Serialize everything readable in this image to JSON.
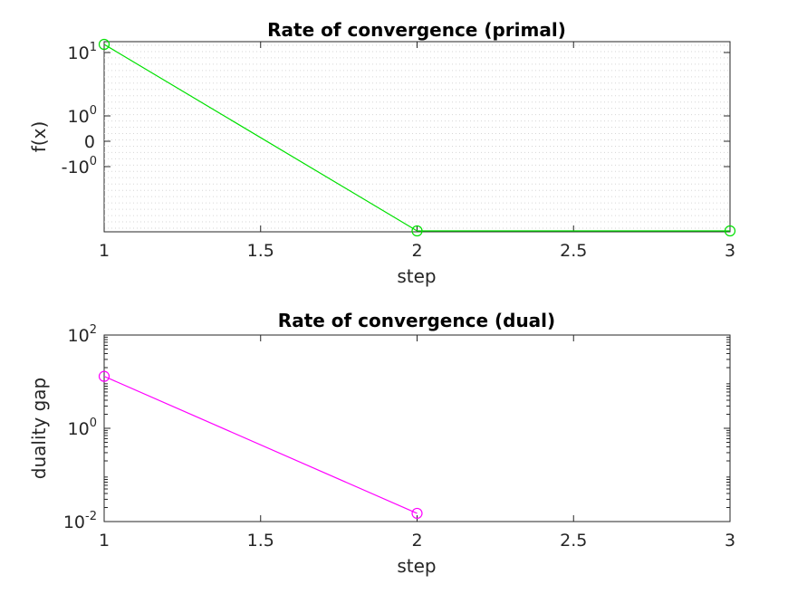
{
  "chart_data": [
    {
      "type": "line",
      "title": "Rate of convergence (primal)",
      "xlabel": "step",
      "ylabel": "f(x)",
      "xlim": [
        1,
        3
      ],
      "xticks": [
        "1",
        "1.5",
        "2",
        "2.5",
        "3"
      ],
      "xtick_values": [
        1,
        1.5,
        2,
        2.5,
        3
      ],
      "yscale": "symlog",
      "yticks": [
        {
          "value": 10,
          "base": "10",
          "exp": "1"
        },
        {
          "value": 1,
          "base": "10",
          "exp": "0"
        },
        {
          "value": 0,
          "base": "0",
          "exp": ""
        },
        {
          "value": -1,
          "base": "-10",
          "exp": "0"
        }
      ],
      "grid": "minor",
      "series": [
        {
          "color": "#00e000",
          "marker": "circle",
          "x": [
            1,
            2,
            3
          ],
          "y": [
            10,
            -10,
            -10
          ]
        }
      ]
    },
    {
      "type": "line",
      "title": "Rate of convergence (dual)",
      "xlabel": "step",
      "ylabel": "duality gap",
      "xlim": [
        1,
        3
      ],
      "xticks": [
        "1",
        "1.5",
        "2",
        "2.5",
        "3"
      ],
      "xtick_values": [
        1,
        1.5,
        2,
        2.5,
        3
      ],
      "yscale": "log",
      "ylim": [
        0.01,
        100
      ],
      "yticks": [
        {
          "value": 100,
          "base": "10",
          "exp": "2"
        },
        {
          "value": 1,
          "base": "10",
          "exp": "0"
        },
        {
          "value": 0.01,
          "base": "10",
          "exp": "-2"
        }
      ],
      "grid": "off",
      "series": [
        {
          "color": "#ff00ff",
          "marker": "circle",
          "x": [
            1,
            2
          ],
          "y": [
            13,
            0.015
          ]
        }
      ]
    }
  ]
}
